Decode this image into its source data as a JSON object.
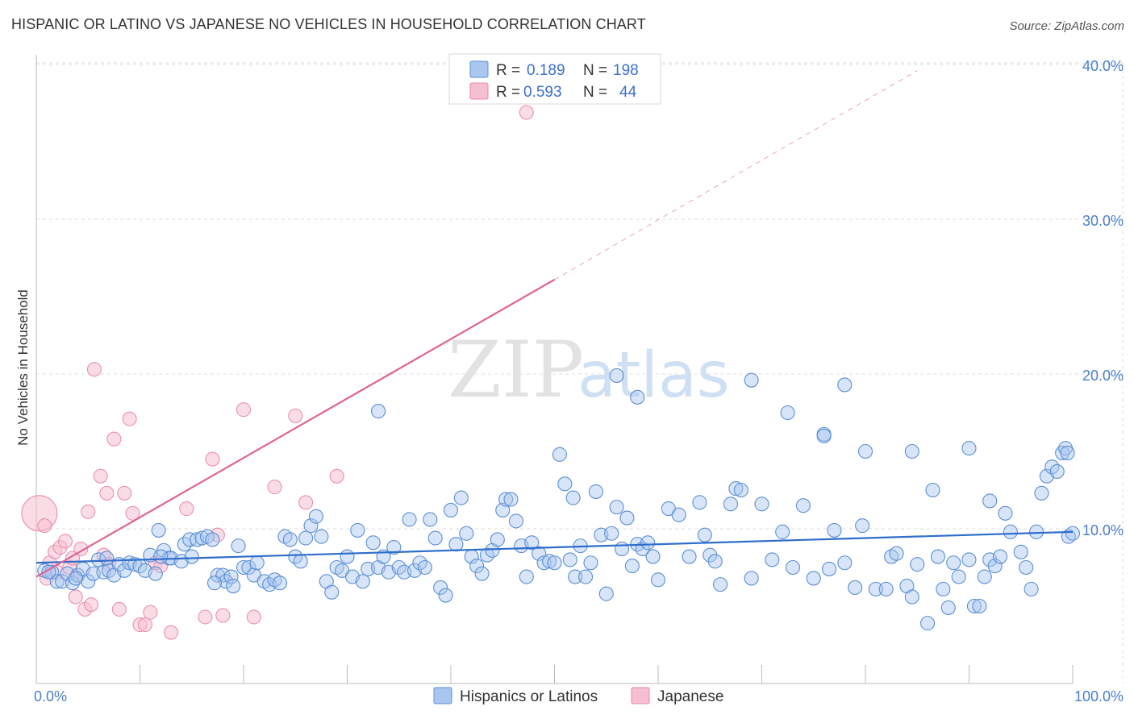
{
  "title": "HISPANIC OR LATINO VS JAPANESE NO VEHICLES IN HOUSEHOLD CORRELATION CHART",
  "source": "Source: ZipAtlas.com",
  "watermark": {
    "zip": "ZIP",
    "atlas": "atlas"
  },
  "colors": {
    "blue_fill": "#a9c6ef",
    "blue_stroke": "#5b8fd6",
    "blue_line": "#2f6ecb",
    "pink_fill": "#f6bfd0",
    "pink_stroke": "#e889a8",
    "pink_line": "#e0638f",
    "grid": "#dcdcdc",
    "tick_text": "#4a7ec9"
  },
  "legend": {
    "rows": [
      {
        "r_label": "R =",
        "r_value": "0.189",
        "n_label": "N =",
        "n_value": "198"
      },
      {
        "r_label": "R =",
        "r_value": "0.593",
        "n_label": "N =",
        "n_value": "44"
      }
    ]
  },
  "bottom_legend": [
    "Hispanics or Latinos",
    "Japanese"
  ],
  "chart_data": {
    "type": "scatter",
    "title": "HISPANIC OR LATINO VS JAPANESE NO VEHICLES IN HOUSEHOLD CORRELATION CHART",
    "xlabel": "",
    "ylabel": "No Vehicles in Household",
    "xlim": [
      0,
      100
    ],
    "ylim": [
      0,
      40
    ],
    "x_tick_labels": [
      "0.0%",
      "100.0%"
    ],
    "y_tick_labels": [
      "10.0%",
      "20.0%",
      "30.0%",
      "40.0%"
    ],
    "y_ticks": [
      10,
      20,
      30,
      40
    ],
    "grid": true,
    "legend_position": "top-center",
    "series": [
      {
        "name": "Hispanics or Latinos",
        "stats": {
          "R": 0.189,
          "N": 198
        },
        "trend": {
          "x": [
            0,
            100
          ],
          "y": [
            7.8,
            9.8
          ],
          "dashed_extension": false
        },
        "points": [
          [
            0.8,
            7.3
          ],
          [
            1.5,
            7.2
          ],
          [
            2,
            6.6
          ],
          [
            2.5,
            6.6
          ],
          [
            3,
            7.1
          ],
          [
            3.5,
            6.5
          ],
          [
            4,
            7.0
          ],
          [
            4.5,
            7.4
          ],
          [
            5,
            6.6
          ],
          [
            5.5,
            7.1
          ],
          [
            6,
            8.0
          ],
          [
            6.5,
            7.2
          ],
          [
            7,
            7.3
          ],
          [
            7.5,
            7.0
          ],
          [
            8,
            7.7
          ],
          [
            8.5,
            7.3
          ],
          [
            9,
            7.8
          ],
          [
            9.5,
            7.7
          ],
          [
            10,
            7.6
          ],
          [
            10.5,
            7.3
          ],
          [
            11,
            8.3
          ],
          [
            11.5,
            7.1
          ],
          [
            11.8,
            9.9
          ],
          [
            12.3,
            8.6
          ],
          [
            12.8,
            8.1
          ],
          [
            13,
            8.1
          ],
          [
            14,
            7.9
          ],
          [
            14.3,
            9.0
          ],
          [
            14.8,
            9.3
          ],
          [
            15,
            8.2
          ],
          [
            15.5,
            9.3
          ],
          [
            16,
            9.4
          ],
          [
            16.5,
            9.5
          ],
          [
            17,
            9.3
          ],
          [
            17.5,
            7.0
          ],
          [
            18,
            7.0
          ],
          [
            18.3,
            6.6
          ],
          [
            18.8,
            6.9
          ],
          [
            19,
            6.3
          ],
          [
            19.5,
            8.9
          ],
          [
            20,
            7.5
          ],
          [
            20.5,
            7.5
          ],
          [
            21,
            7.0
          ],
          [
            21.3,
            7.8
          ],
          [
            22,
            6.6
          ],
          [
            22.5,
            6.4
          ],
          [
            23,
            6.7
          ],
          [
            23.5,
            6.5
          ],
          [
            24,
            9.5
          ],
          [
            24.5,
            9.3
          ],
          [
            25,
            8.2
          ],
          [
            25.5,
            7.9
          ],
          [
            26,
            9.4
          ],
          [
            26.5,
            10.2
          ],
          [
            27,
            10.8
          ],
          [
            27.5,
            9.5
          ],
          [
            28,
            6.6
          ],
          [
            28.5,
            5.9
          ],
          [
            29,
            7.5
          ],
          [
            29.5,
            7.3
          ],
          [
            30,
            8.2
          ],
          [
            30.5,
            6.9
          ],
          [
            31,
            9.9
          ],
          [
            31.5,
            6.6
          ],
          [
            32,
            7.4
          ],
          [
            32.5,
            9.1
          ],
          [
            33,
            7.5
          ],
          [
            33.5,
            8.2
          ],
          [
            34,
            7.2
          ],
          [
            34.5,
            8.8
          ],
          [
            35,
            7.5
          ],
          [
            35.5,
            7.2
          ],
          [
            36,
            10.6
          ],
          [
            36.5,
            7.3
          ],
          [
            37,
            7.8
          ],
          [
            37.5,
            7.5
          ],
          [
            38,
            10.6
          ],
          [
            38.5,
            9.4
          ],
          [
            39,
            6.2
          ],
          [
            39.5,
            5.7
          ],
          [
            40,
            11.2
          ],
          [
            40.5,
            9.0
          ],
          [
            41,
            12.0
          ],
          [
            41.5,
            9.7
          ],
          [
            42,
            8.2
          ],
          [
            42.5,
            7.6
          ],
          [
            43,
            7.1
          ],
          [
            43.5,
            8.3
          ],
          [
            44,
            8.6
          ],
          [
            44.5,
            9.3
          ],
          [
            45,
            11.2
          ],
          [
            45.3,
            11.9
          ],
          [
            45.8,
            11.9
          ],
          [
            46.3,
            10.5
          ],
          [
            46.8,
            8.9
          ],
          [
            47.3,
            6.9
          ],
          [
            47.8,
            9.1
          ],
          [
            48.5,
            8.4
          ],
          [
            49,
            7.8
          ],
          [
            49.5,
            7.9
          ],
          [
            50,
            7.8
          ],
          [
            50.5,
            14.8
          ],
          [
            51,
            12.9
          ],
          [
            51.5,
            8.0
          ],
          [
            52,
            6.9
          ],
          [
            52.5,
            8.9
          ],
          [
            53,
            6.9
          ],
          [
            53.5,
            7.8
          ],
          [
            54,
            12.4
          ],
          [
            54.5,
            9.6
          ],
          [
            55,
            5.8
          ],
          [
            55.5,
            9.7
          ],
          [
            56,
            11.4
          ],
          [
            56.5,
            8.7
          ],
          [
            57,
            10.7
          ],
          [
            57.5,
            7.6
          ],
          [
            58,
            9.0
          ],
          [
            58.5,
            8.7
          ],
          [
            59,
            9.1
          ],
          [
            59.5,
            8.2
          ],
          [
            60,
            6.7
          ],
          [
            61,
            11.3
          ],
          [
            62,
            10.9
          ],
          [
            63,
            8.2
          ],
          [
            64,
            11.7
          ],
          [
            64.5,
            9.6
          ],
          [
            65,
            8.3
          ],
          [
            65.5,
            7.9
          ],
          [
            66,
            6.4
          ],
          [
            67,
            11.6
          ],
          [
            67.5,
            12.6
          ],
          [
            68,
            12.5
          ],
          [
            69,
            6.8
          ],
          [
            70,
            11.6
          ],
          [
            71,
            8.0
          ],
          [
            72,
            9.8
          ],
          [
            73,
            7.5
          ],
          [
            74,
            11.5
          ],
          [
            75,
            6.8
          ],
          [
            76,
            16.1
          ],
          [
            76.5,
            7.4
          ],
          [
            77,
            9.9
          ],
          [
            78,
            7.8
          ],
          [
            79,
            6.2
          ],
          [
            80,
            15.0
          ],
          [
            81,
            6.1
          ],
          [
            82,
            6.1
          ],
          [
            82.5,
            8.2
          ],
          [
            83,
            8.4
          ],
          [
            84,
            6.3
          ],
          [
            84.5,
            5.6
          ],
          [
            85,
            7.7
          ],
          [
            86,
            3.9
          ],
          [
            87,
            8.2
          ],
          [
            87.5,
            6.1
          ],
          [
            88,
            4.9
          ],
          [
            88.5,
            7.8
          ],
          [
            89,
            6.9
          ],
          [
            90,
            8.0
          ],
          [
            90.5,
            5.0
          ],
          [
            91,
            5.0
          ],
          [
            91.5,
            6.9
          ],
          [
            92,
            8.0
          ],
          [
            92.5,
            7.6
          ],
          [
            93,
            8.2
          ],
          [
            93.5,
            11.0
          ],
          [
            94,
            9.8
          ],
          [
            95,
            8.5
          ],
          [
            95.5,
            7.5
          ],
          [
            96,
            6.1
          ],
          [
            96.5,
            9.8
          ],
          [
            97,
            12.3
          ],
          [
            97.5,
            13.4
          ],
          [
            98,
            14.0
          ],
          [
            98.5,
            13.7
          ],
          [
            99,
            14.9
          ],
          [
            99.3,
            15.2
          ],
          [
            99.6,
            9.5
          ],
          [
            100,
            9.7
          ],
          [
            1.2,
            7.2
          ],
          [
            3.8,
            6.8
          ],
          [
            6.8,
            8.1
          ],
          [
            12,
            8.2
          ],
          [
            17.2,
            6.5
          ],
          [
            33,
            17.6
          ],
          [
            51.8,
            12.0
          ],
          [
            56,
            19.9
          ],
          [
            58,
            18.5
          ],
          [
            69,
            19.6
          ],
          [
            72.5,
            17.5
          ],
          [
            76,
            16.0
          ],
          [
            78,
            19.3
          ],
          [
            84.5,
            15.0
          ],
          [
            90,
            15.2
          ],
          [
            92,
            11.8
          ],
          [
            99.5,
            14.9
          ],
          [
            86.5,
            12.5
          ],
          [
            79.7,
            10.2
          ]
        ]
      },
      {
        "name": "Japanese",
        "stats": {
          "R": 0.593,
          "N": 44
        },
        "trend": {
          "x": [
            0,
            50
          ],
          "y": [
            6.9,
            26.1
          ],
          "dashed_to": [
            85,
            39.6
          ]
        },
        "points": [
          [
            0.3,
            11.0
          ],
          [
            0.8,
            10.2
          ],
          [
            1,
            6.8
          ],
          [
            1.3,
            7.8
          ],
          [
            1.8,
            8.5
          ],
          [
            2,
            7.2
          ],
          [
            2.3,
            8.8
          ],
          [
            2.8,
            9.2
          ],
          [
            3.2,
            7.5
          ],
          [
            3.5,
            8.1
          ],
          [
            3.8,
            5.6
          ],
          [
            4,
            7.0
          ],
          [
            4.3,
            8.7
          ],
          [
            4.7,
            4.8
          ],
          [
            5,
            11.1
          ],
          [
            5.3,
            5.1
          ],
          [
            5.6,
            20.3
          ],
          [
            6.2,
            13.4
          ],
          [
            6.5,
            8.3
          ],
          [
            6.8,
            12.3
          ],
          [
            7,
            7.7
          ],
          [
            7.5,
            15.8
          ],
          [
            8,
            4.8
          ],
          [
            8.5,
            12.3
          ],
          [
            9,
            17.1
          ],
          [
            9.3,
            11.0
          ],
          [
            10,
            3.8
          ],
          [
            10.5,
            3.8
          ],
          [
            11,
            4.6
          ],
          [
            11.5,
            7.8
          ],
          [
            12,
            7.6
          ],
          [
            13,
            3.3
          ],
          [
            14.5,
            11.3
          ],
          [
            16.3,
            4.3
          ],
          [
            17,
            14.5
          ],
          [
            17.5,
            9.6
          ],
          [
            18,
            4.4
          ],
          [
            20,
            17.7
          ],
          [
            21,
            4.3
          ],
          [
            23,
            12.7
          ],
          [
            25,
            17.3
          ],
          [
            26,
            11.7
          ],
          [
            29,
            13.4
          ],
          [
            47.3,
            36.9
          ]
        ]
      }
    ]
  }
}
